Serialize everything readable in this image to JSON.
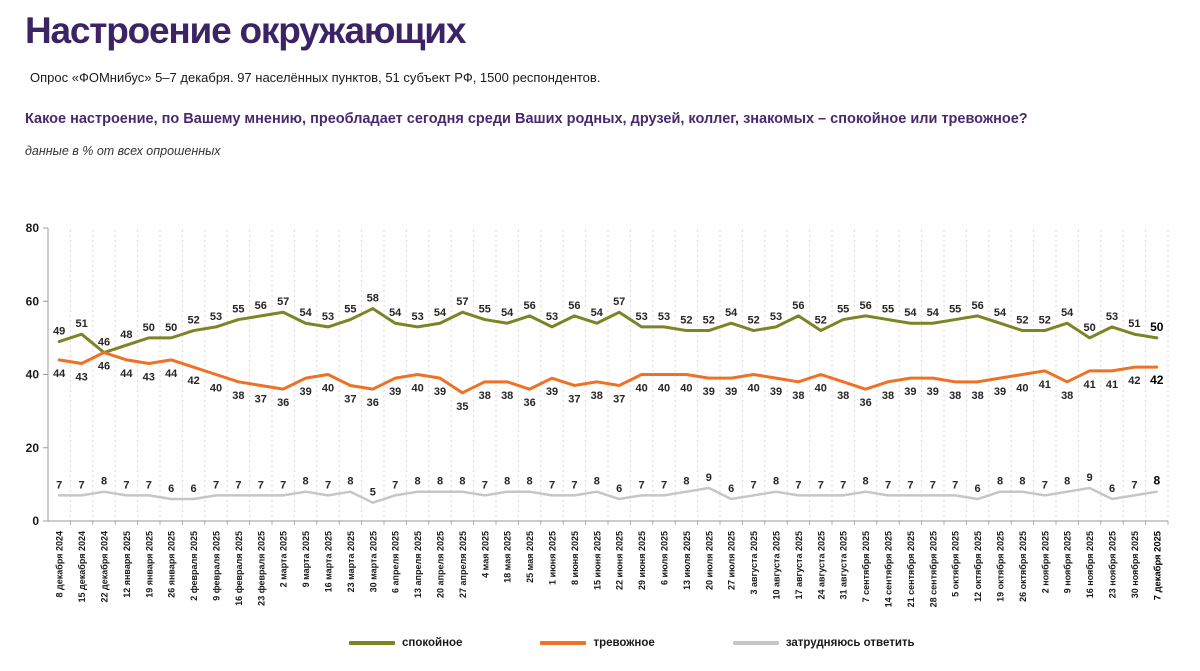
{
  "header": {
    "title": "Настроение окружающих",
    "subtitle": "Опрос «ФОМнибус» 5–7 декабря. 97 населённых пунктов, 51 субъект РФ, 1500 респондентов.",
    "question": "Какое настроение, по Вашему мнению, преобладает сегодня среди Ваших родных, друзей, коллег, знакомых – спокойное или тревожное?",
    "note": "данные в % от всех опрошенных"
  },
  "colors": {
    "title": "#3c2366",
    "question": "#472a6e",
    "grid": "#d9d9d9",
    "axis": "#9b9b9b",
    "tick": "#b3b3b3",
    "data_label": "#262626"
  },
  "chart_data": {
    "type": "line",
    "title": "Настроение окружающих",
    "xlabel": "",
    "ylabel": "данные в % от всех опрошенных",
    "ylim": [
      0,
      80
    ],
    "yticks": [
      0,
      20,
      40,
      60,
      80
    ],
    "grid": "vertical dashed gridlines at category boundaries, no horizontal gridlines",
    "legend_position": "bottom",
    "categories": [
      "8 декабря 2024",
      "15 декабря 2024",
      "22 декабря 2024",
      "12 января 2025",
      "19 января 2025",
      "26 января 2025",
      "2 февраля 2025",
      "9 февраля 2025",
      "16 февраля 2025",
      "23 февраля 2025",
      "2 марта 2025",
      "9 марта 2025",
      "16 марта 2025",
      "23 марта 2025",
      "30 марта 2025",
      "6 апреля 2025",
      "13 апреля 2025",
      "20 апреля 2025",
      "27 апреля 2025",
      "4 мая 2025",
      "18 мая 2025",
      "25 мая 2025",
      "1 июня 2025",
      "8 июня 2025",
      "15 июня 2025",
      "22 июня 2025",
      "29 июня 2025",
      "6 июля 2025",
      "13 июля 2025",
      "20 июля 2025",
      "27 июля 2025",
      "3 августа 2025",
      "10 августа 2025",
      "17 августа 2025",
      "24 августа 2025",
      "31 августа 2025",
      "7 сентября 2025",
      "14 сентября 2025",
      "21 сентября 2025",
      "28 сентября 2025",
      "5 октября 2025",
      "12 октября 2025",
      "19 октября 2025",
      "26 октября 2025",
      "2 ноября 2025",
      "9 ноября 2025",
      "16 ноября 2025",
      "23 ноября 2025",
      "30 ноября 2025",
      "7 декабря 2025"
    ],
    "series": [
      {
        "name": "спокойное",
        "key": "calm",
        "color": "#7b8526",
        "label_position": "above",
        "values": [
          49,
          51,
          46,
          48,
          50,
          50,
          52,
          53,
          55,
          56,
          57,
          54,
          53,
          55,
          58,
          54,
          53,
          54,
          57,
          55,
          54,
          56,
          53,
          56,
          54,
          57,
          53,
          53,
          52,
          52,
          54,
          52,
          53,
          56,
          52,
          55,
          56,
          55,
          54,
          54,
          55,
          56,
          54,
          52,
          52,
          54,
          50,
          53,
          51,
          50
        ]
      },
      {
        "name": "тревожное",
        "key": "anxious",
        "color": "#ee7125",
        "label_position": "below",
        "values": [
          44,
          43,
          46,
          44,
          43,
          44,
          42,
          40,
          38,
          37,
          36,
          39,
          40,
          37,
          36,
          39,
          40,
          39,
          35,
          38,
          38,
          36,
          39,
          37,
          38,
          37,
          40,
          40,
          40,
          39,
          39,
          40,
          39,
          38,
          40,
          38,
          36,
          38,
          39,
          39,
          38,
          38,
          39,
          40,
          41,
          38,
          41,
          41,
          42,
          42
        ]
      },
      {
        "name": "затрудняюсь ответить",
        "key": "undecided",
        "color": "#c6c6c6",
        "label_position": "above",
        "values": [
          7,
          7,
          8,
          7,
          7,
          6,
          6,
          7,
          7,
          7,
          7,
          8,
          7,
          8,
          5,
          7,
          8,
          8,
          8,
          7,
          8,
          8,
          7,
          7,
          8,
          6,
          7,
          7,
          8,
          9,
          6,
          7,
          8,
          7,
          7,
          7,
          8,
          7,
          7,
          7,
          7,
          6,
          8,
          8,
          7,
          8,
          9,
          6,
          7,
          8
        ]
      }
    ]
  }
}
